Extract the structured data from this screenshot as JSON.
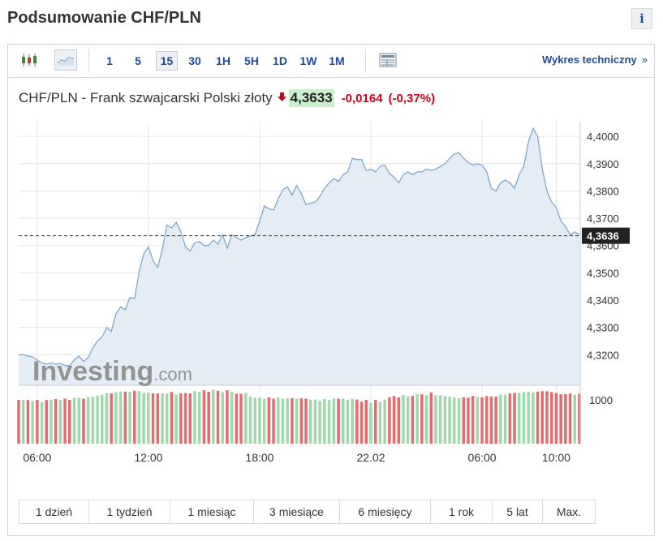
{
  "header": {
    "title": "Podsumowanie CHF/PLN",
    "info_icon": "i"
  },
  "toolbar": {
    "icons": [
      "candlestick-chart-icon",
      "area-chart-icon"
    ],
    "timeframes": [
      "1",
      "5",
      "15",
      "30",
      "1H",
      "5H",
      "1D",
      "1W",
      "1M"
    ],
    "selected_timeframe": "15",
    "layout_icon": "table-layout-icon",
    "technical_link": "Wykres techniczny",
    "technical_chevron": "»"
  },
  "quote": {
    "label": "CHF/PLN - Frank szwajcarski Polski złoty",
    "direction_icon": "down-arrow-icon",
    "price": "4,3633",
    "change": "-0,0164",
    "change_pct": "(-0,37%)"
  },
  "chart_data": {
    "type": "area",
    "watermark": "Investing.com",
    "current_label": "4,3636",
    "current_value": 4.3636,
    "ylim": [
      4.3088,
      4.4054
    ],
    "y_ticks": [
      "4,4000",
      "4,3900",
      "4,3800",
      "4,3700",
      "4,3600",
      "4,3500",
      "4,3400",
      "4,3300",
      "4,3200"
    ],
    "y_tick_values": [
      4.4,
      4.39,
      4.38,
      4.37,
      4.36,
      4.35,
      4.34,
      4.33,
      4.32
    ],
    "x_ticks": [
      "06:00",
      "12:00",
      "18:00",
      "22.02",
      "06:00",
      "10:00"
    ],
    "x_tick_index": [
      4,
      28,
      52,
      76,
      100,
      116
    ],
    "price": [
      4.32,
      4.32,
      4.3195,
      4.3192,
      4.318,
      4.317,
      4.3165,
      4.317,
      4.3165,
      4.3168,
      4.316,
      4.316,
      4.318,
      4.3195,
      4.3175,
      4.319,
      4.3225,
      4.325,
      4.3265,
      4.33,
      4.3285,
      4.335,
      4.3375,
      4.3365,
      4.341,
      4.3405,
      4.3505,
      4.357,
      4.3595,
      4.3545,
      4.352,
      4.3585,
      4.3675,
      4.3665,
      4.3685,
      4.365,
      4.3595,
      4.358,
      4.361,
      4.3615,
      4.36,
      4.36,
      4.362,
      4.3605,
      4.364,
      4.359,
      4.364,
      4.363,
      4.362,
      4.363,
      4.3635,
      4.364,
      4.369,
      4.3745,
      4.3735,
      4.373,
      4.377,
      4.3805,
      4.3815,
      4.3785,
      4.382,
      4.379,
      4.375,
      4.3755,
      4.376,
      4.378,
      4.381,
      4.383,
      4.3845,
      4.3835,
      4.386,
      4.387,
      4.392,
      4.3915,
      4.3915,
      4.3875,
      4.388,
      4.387,
      4.389,
      4.3895,
      4.3865,
      4.385,
      4.383,
      4.386,
      4.387,
      4.386,
      4.387,
      4.387,
      4.388,
      4.3875,
      4.388,
      4.389,
      4.39,
      4.392,
      4.3935,
      4.394,
      4.392,
      4.3905,
      4.3895,
      4.39,
      4.3895,
      4.387,
      4.381,
      4.38,
      4.383,
      4.384,
      4.383,
      4.381,
      4.386,
      4.389,
      4.398,
      4.403,
      4.4,
      4.388,
      4.38,
      4.376,
      4.374,
      4.369,
      4.367,
      4.364,
      4.365,
      4.364
    ],
    "volume": [
      1000,
      1000,
      1000,
      970,
      1000,
      950,
      1000,
      1000,
      1020,
      1000,
      1030,
      1000,
      1050,
      1050,
      1030,
      1070,
      1070,
      1100,
      1120,
      1150,
      1150,
      1180,
      1190,
      1190,
      1190,
      1210,
      1200,
      1160,
      1160,
      1150,
      1150,
      1150,
      1150,
      1180,
      1120,
      1150,
      1160,
      1150,
      1200,
      1180,
      1220,
      1190,
      1240,
      1210,
      1180,
      1220,
      1190,
      1140,
      1140,
      1160,
      1080,
      1050,
      1050,
      1030,
      1060,
      1030,
      1060,
      1030,
      1040,
      1040,
      1030,
      1040,
      1030,
      1010,
      1010,
      980,
      1020,
      1000,
      1030,
      1030,
      1030,
      1000,
      1030,
      1010,
      960,
      1000,
      930,
      1000,
      960,
      1010,
      1060,
      1090,
      1060,
      1110,
      1080,
      1090,
      1130,
      1130,
      1110,
      1170,
      1110,
      1110,
      1090,
      1070,
      1060,
      1040,
      1060,
      1050,
      1090,
      1070,
      1060,
      1090,
      1080,
      1080,
      1120,
      1120,
      1150,
      1160,
      1160,
      1180,
      1190,
      1170,
      1190,
      1200,
      1200,
      1180,
      1160,
      1130,
      1130,
      1150,
      1120,
      1140
    ],
    "volume_up": [
      false,
      true,
      false,
      true,
      false,
      true,
      false,
      true,
      false,
      true,
      false,
      false,
      true,
      true,
      false,
      true,
      true,
      true,
      true,
      true,
      false,
      true,
      true,
      false,
      true,
      false,
      true,
      true,
      true,
      false,
      false,
      true,
      true,
      false,
      true,
      false,
      false,
      false,
      true,
      true,
      false,
      false,
      true,
      false,
      true,
      false,
      true,
      false,
      false,
      true,
      true,
      true,
      true,
      true,
      false,
      false,
      true,
      true,
      true,
      false,
      true,
      false,
      false,
      true,
      true,
      true,
      true,
      true,
      true,
      false,
      true,
      true,
      true,
      false,
      false,
      false,
      true,
      false,
      true,
      true,
      false,
      false,
      false,
      true,
      true,
      false,
      true,
      false,
      true,
      false,
      true,
      true,
      true,
      true,
      true,
      true,
      false,
      false,
      false,
      true,
      false,
      false,
      false,
      false,
      true,
      true,
      false,
      false,
      true,
      true,
      true,
      true,
      false,
      false,
      false,
      false,
      false,
      false,
      false,
      false,
      true,
      false
    ],
    "volume_tick": "1000",
    "volume_tick_value": 1000,
    "volume_max": 1280,
    "colors": {
      "line": "#7fa8cc",
      "fill": "#e4edf5",
      "up": "#9fd8aa",
      "down": "#e26d6f",
      "grid": "#e6e6e6"
    }
  },
  "range_buttons": [
    "1 dzień",
    "1 tydzień",
    "1 miesiąc",
    "3 miesiące",
    "6 miesięcy",
    "1 rok",
    "5 lat",
    "Max."
  ]
}
